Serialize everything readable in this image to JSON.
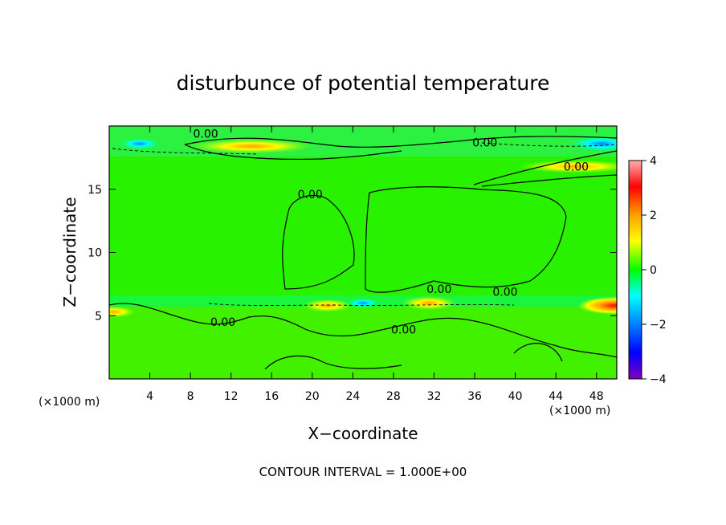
{
  "chart_data": {
    "type": "heatmap",
    "title": "disturbunce of potential temperature",
    "xlabel": "X−coordinate",
    "ylabel": "Z−coordinate",
    "x_unit": "(×1000 m)",
    "y_unit": "(×1000 m)",
    "xlim": [
      0,
      50
    ],
    "ylim": [
      0,
      20
    ],
    "x_ticks": [
      4,
      8,
      12,
      16,
      20,
      24,
      28,
      32,
      36,
      40,
      44,
      48
    ],
    "y_ticks": [
      5,
      10,
      15
    ],
    "colorbar": {
      "range": [
        -4,
        4
      ],
      "ticks": [
        4,
        2,
        0,
        -2,
        -4
      ],
      "tick_labels": [
        "4",
        "2",
        "0",
        "−2",
        "−4"
      ],
      "colors": [
        "#ffb0b0",
        "#ff0000",
        "#ffa000",
        "#ffff00",
        "#00ff00",
        "#00ffff",
        "#0080ff",
        "#0000ff",
        "#8000c0"
      ]
    },
    "contour_labels": [
      {
        "text": "0.00",
        "x": 9.5,
        "z": 19.4
      },
      {
        "text": "0.00",
        "x": 37.0,
        "z": 18.7
      },
      {
        "text": "0.00",
        "x": 46.0,
        "z": 16.8
      },
      {
        "text": "0.00",
        "x": 19.8,
        "z": 14.6
      },
      {
        "text": "0.00",
        "x": 32.5,
        "z": 7.1
      },
      {
        "text": "0.00",
        "x": 39.0,
        "z": 6.9
      },
      {
        "text": "0.00",
        "x": 11.2,
        "z": 4.5
      },
      {
        "text": "0.00",
        "x": 29.0,
        "z": 3.9
      }
    ],
    "field_features": [
      {
        "kind": "warm",
        "value": 2.0,
        "x": 14.0,
        "z": 18.4
      },
      {
        "kind": "warm",
        "value": 1.5,
        "x": 46.0,
        "z": 16.8
      },
      {
        "kind": "warm",
        "value": 1.5,
        "x": 21.5,
        "z": 5.8
      },
      {
        "kind": "warm",
        "value": 1.8,
        "x": 31.5,
        "z": 6.0
      },
      {
        "kind": "warm",
        "value": 3.0,
        "x": 49.8,
        "z": 5.8
      },
      {
        "kind": "warm",
        "value": 1.0,
        "x": 0.5,
        "z": 5.3
      },
      {
        "kind": "cold",
        "value": -1.0,
        "x": 3.0,
        "z": 18.6
      },
      {
        "kind": "cold",
        "value": -2.5,
        "x": 48.5,
        "z": 18.6
      },
      {
        "kind": "cold",
        "value": -0.5,
        "x": 25.0,
        "z": 6.0
      }
    ],
    "grid": false,
    "legend": "colorbar-right"
  },
  "footer": {
    "contour_interval": "CONTOUR INTERVAL = 1.000E+00"
  }
}
